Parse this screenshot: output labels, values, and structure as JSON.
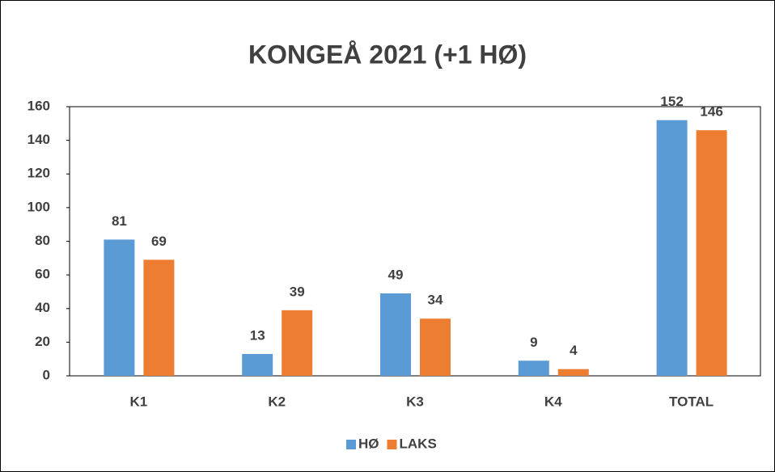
{
  "chart_data": {
    "type": "bar",
    "title": "KONGEÅ 2021 (+1 HØ)",
    "categories": [
      "K1",
      "K2",
      "K3",
      "K4",
      "TOTAL"
    ],
    "series": [
      {
        "name": "HØ",
        "color": "#5b9bd5",
        "values": [
          81,
          13,
          49,
          9,
          152
        ]
      },
      {
        "name": "LAKS",
        "color": "#ed7d31",
        "values": [
          69,
          39,
          34,
          4,
          146
        ]
      }
    ],
    "ylim": [
      0,
      160
    ],
    "yticks": [
      0,
      20,
      40,
      60,
      80,
      100,
      120,
      140,
      160
    ],
    "legend": "bottom"
  }
}
